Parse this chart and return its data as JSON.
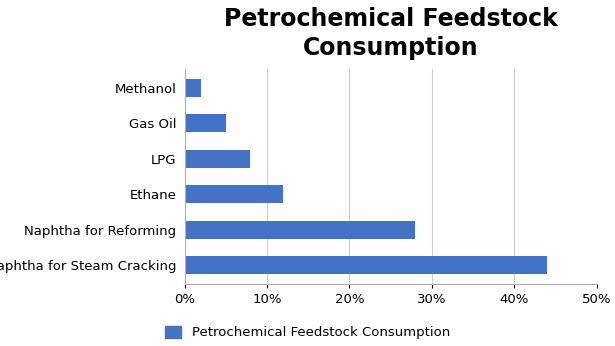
{
  "title": "Petrochemical Feedstock\nConsumption",
  "categories": [
    "Naphtha for Steam Cracking",
    "Naphtha for Reforming",
    "Ethane",
    "LPG",
    "Gas Oil",
    "Methanol"
  ],
  "values": [
    0.44,
    0.28,
    0.12,
    0.08,
    0.05,
    0.02
  ],
  "bar_color": "#4472C4",
  "xlim": [
    0,
    0.5
  ],
  "xticks": [
    0.0,
    0.1,
    0.2,
    0.3,
    0.4,
    0.5
  ],
  "xtick_labels": [
    "0%",
    "10%",
    "20%",
    "30%",
    "40%",
    "50%"
  ],
  "legend_label": "Petrochemical Feedstock Consumption",
  "background_color": "#ffffff",
  "title_fontsize": 17,
  "label_fontsize": 9.5,
  "tick_fontsize": 9.5,
  "legend_fontsize": 9.5
}
